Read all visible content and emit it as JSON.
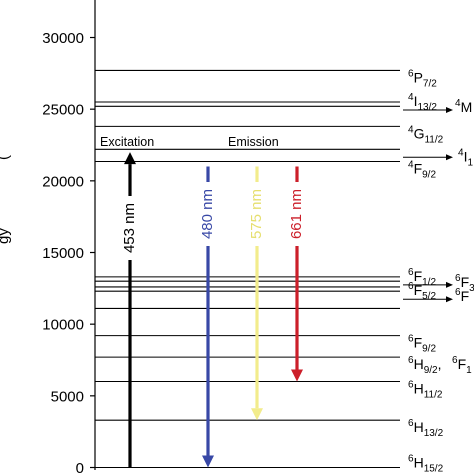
{
  "axis": {
    "ticks": [
      {
        "value": 0,
        "label": "0"
      },
      {
        "value": 5000,
        "label": "5000"
      },
      {
        "value": 10000,
        "label": "10000"
      },
      {
        "value": 15000,
        "label": "15000"
      },
      {
        "value": 20000,
        "label": "20000"
      },
      {
        "value": 25000,
        "label": "25000"
      },
      {
        "value": 30000,
        "label": "30000"
      }
    ],
    "partial_label": "(",
    "partial_label_2": ")",
    "partial_label_3": "gy"
  },
  "levels": [
    {
      "energy": 27700,
      "main": "P",
      "sup": "6",
      "sub": "7/2"
    },
    {
      "energy": 25500,
      "main": "I",
      "sup": "4",
      "sub": "13/2",
      "tail_main": "M",
      "tail_sup": "4",
      "arrow": true
    },
    {
      "energy": 25200
    },
    {
      "energy": 23800,
      "main": "G",
      "sup": "4",
      "sub": "11/2"
    },
    {
      "energy": 22200,
      "main": "I",
      "sup": "4",
      "sub": "1",
      "arrow": true,
      "label_right": true
    },
    {
      "energy": 21350,
      "main": "F",
      "sup": "4",
      "sub": "9/2"
    },
    {
      "energy": 13300,
      "main": "F",
      "sup": "6",
      "sub": "1/2",
      "tail_main": "F",
      "tail_sup": "6",
      "tail_sub": "3",
      "arrow": true
    },
    {
      "energy": 13000
    },
    {
      "energy": 12600
    },
    {
      "energy": 12300,
      "main": "F",
      "sup": "6",
      "sub": "5/2",
      "tail_main": "F",
      "tail_sup": "6",
      "arrow": true
    },
    {
      "energy": 11100
    },
    {
      "energy": 9200,
      "main": "F",
      "sup": "6",
      "sub": "9/2"
    },
    {
      "energy": 7700,
      "main": "H",
      "sup": "6",
      "sub": "9/2",
      "tail_text": ",",
      "tail_main": "F",
      "tail_sup": "6",
      "tail_sub": "1"
    },
    {
      "energy": 6000,
      "main": "H",
      "sup": "6",
      "sub": "11/2"
    },
    {
      "energy": 3300,
      "main": "H",
      "sup": "6",
      "sub": "13/2"
    },
    {
      "energy": 0,
      "main": "H",
      "sup": "6",
      "sub": "15/2"
    }
  ],
  "section_labels": {
    "excitation": "Excitation",
    "emission": "Emission"
  },
  "transitions": [
    {
      "label": "453 nm",
      "color": "#000000",
      "from": 0,
      "to": 22000,
      "kind": "excitation"
    },
    {
      "label": "480 nm",
      "color": "#3848a6",
      "from": 21000,
      "to": 0,
      "kind": "emission"
    },
    {
      "label": "575 nm",
      "color": "#f2ec8c",
      "from": 21000,
      "to": 3300,
      "kind": "emission"
    },
    {
      "label": "661 nm",
      "color": "#cc1f2a",
      "from": 21000,
      "to": 6000,
      "kind": "emission"
    }
  ]
}
